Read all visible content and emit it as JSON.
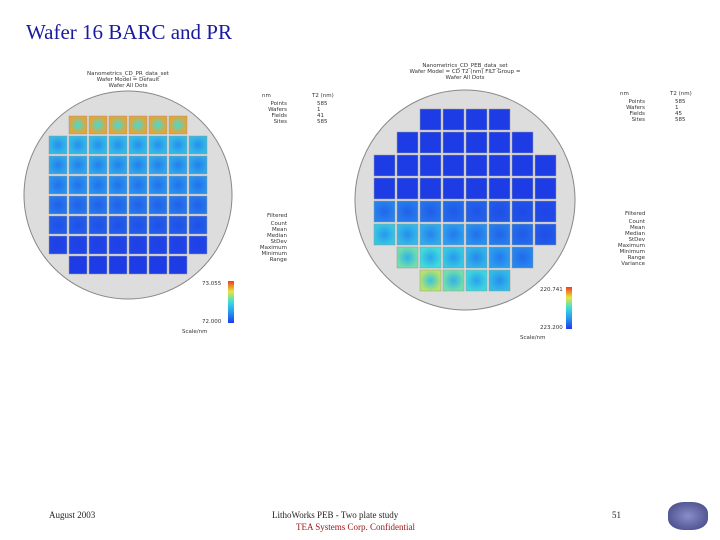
{
  "header": {
    "title": "Wafer 16 BARC and PR"
  },
  "left_panel": {
    "caption": [
      "Nanometrics_CD_PR_data_set",
      "Wafer Model = Default",
      "Wafer All Dots"
    ],
    "summary_header": [
      "nm",
      "T2 (nm)"
    ],
    "summary": [
      [
        "Points",
        "585"
      ],
      [
        "Wafers",
        "1"
      ],
      [
        "Fields",
        "41"
      ],
      [
        "Sites",
        "585"
      ]
    ],
    "filtered_header": "Filtered",
    "filtered": [
      "Count",
      "Mean",
      "Median",
      "StDev",
      "Maximum",
      "Minimum",
      "Range"
    ],
    "scale": [
      "73.055",
      "72.000"
    ],
    "scale_caption": "Scale/nm"
  },
  "right_panel": {
    "caption": [
      "Nanometrics_CD_PEB_data_set",
      "Wafer Model = CD T2 (nm) FILT Group =",
      "Wafer All Dots"
    ],
    "summary_header": [
      "nm",
      "T2 (nm)"
    ],
    "summary": [
      [
        "Points",
        "585"
      ],
      [
        "Wafers",
        "1"
      ],
      [
        "Fields",
        "45"
      ],
      [
        "Sites",
        "585"
      ]
    ],
    "filtered_header": "Filtered",
    "filtered": [
      "Count",
      "Mean",
      "Median",
      "StDev",
      "Maximum",
      "Minimum",
      "Range",
      "Variance"
    ],
    "scale": [
      "220.741",
      "223.200"
    ],
    "scale_caption": "Scale/nm"
  },
  "footer": {
    "date": "August 2003",
    "subject": "LithoWorks PEB - Two plate study",
    "company": "TEA Systems Corp. Confidential",
    "page": "51"
  }
}
